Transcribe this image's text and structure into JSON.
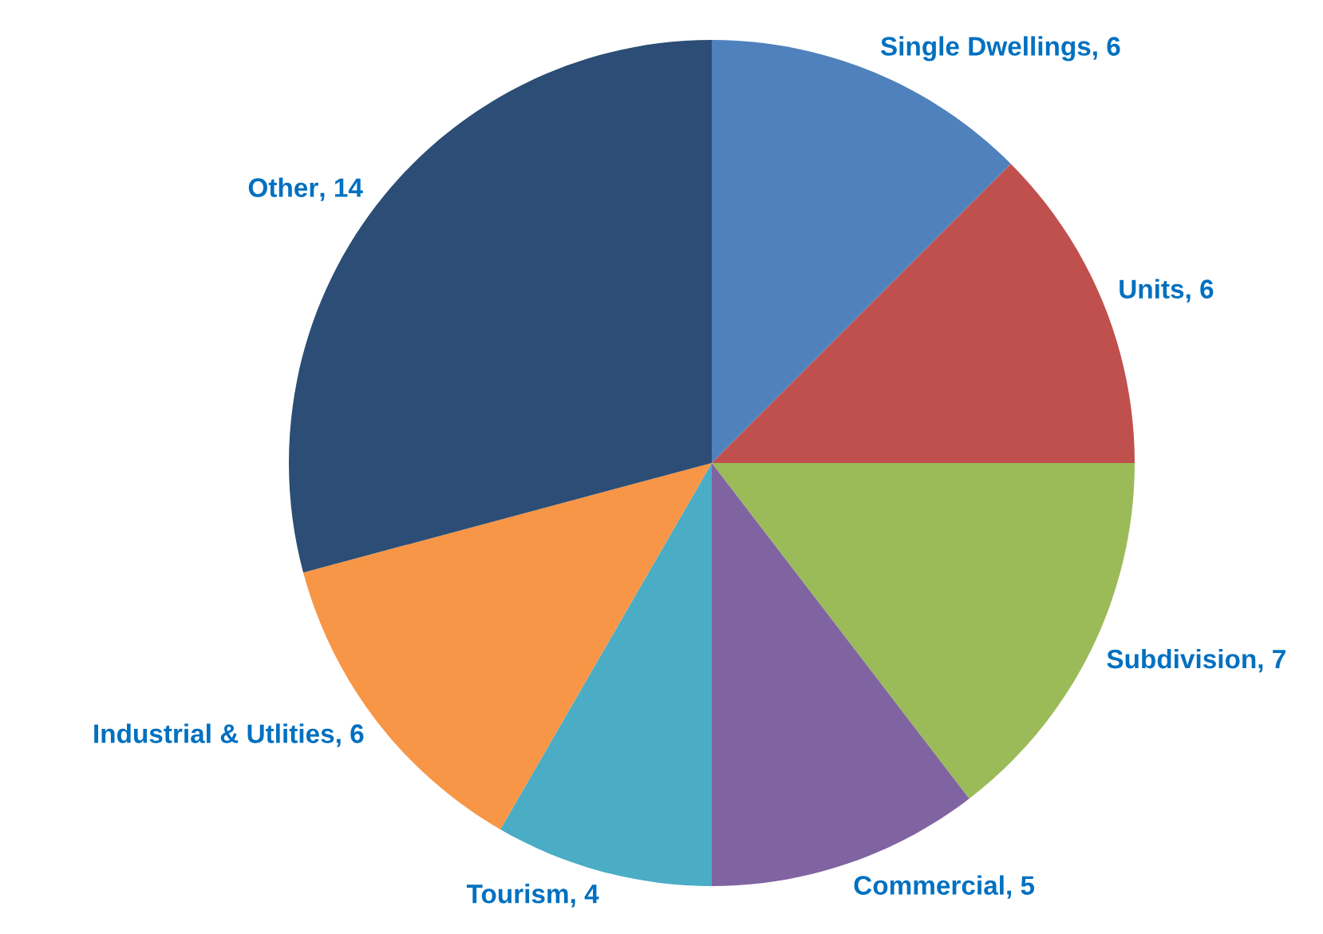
{
  "chart_data": {
    "type": "pie",
    "categories": [
      "Single Dwellings",
      "Units",
      "Subdivision",
      "Commercial",
      "Tourism",
      "Industrial & Utlities",
      "Other"
    ],
    "values": [
      6,
      6,
      7,
      5,
      4,
      6,
      14
    ],
    "colors": [
      "#4f81bd",
      "#c0504d",
      "#9bbb59",
      "#8064a2",
      "#4bacc6",
      "#f79646",
      "#2c4d75"
    ],
    "value_labels": [
      ", 6",
      ", 6",
      ", 7",
      ", 5",
      ", 4",
      ", 6",
      ", 14"
    ],
    "legend": false
  }
}
